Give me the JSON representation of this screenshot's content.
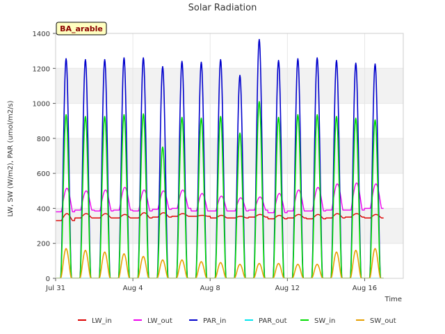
{
  "chart_data": {
    "type": "line",
    "title": "Solar Radiation",
    "xlabel": "Time",
    "ylabel": "LW, SW (W/m2), PAR (umol/m2/s)",
    "site_label": "BA_arable",
    "xlim": [
      0,
      18
    ],
    "ylim": [
      0,
      1400
    ],
    "y_ticks": [
      0,
      200,
      400,
      600,
      800,
      1000,
      1200,
      1400
    ],
    "x_ticks": [
      {
        "value": 0,
        "label": "Jul 31"
      },
      {
        "value": 4,
        "label": "Aug 4"
      },
      {
        "value": 8,
        "label": "Aug 8"
      },
      {
        "value": 12,
        "label": "Aug 12"
      },
      {
        "value": 16,
        "label": "Aug 16"
      }
    ],
    "days": [
      0,
      1,
      2,
      3,
      4,
      5,
      6,
      7,
      8,
      9,
      10,
      11,
      12,
      13,
      14,
      15,
      16
    ],
    "series": [
      {
        "name": "LW_in",
        "color": "#dd0000",
        "kind": "lw",
        "day_values": [
          370,
          370,
          370,
          365,
          375,
          375,
          370,
          360,
          360,
          355,
          365,
          360,
          365,
          365,
          370,
          370,
          365
        ],
        "night_values": [
          330,
          345,
          345,
          345,
          345,
          350,
          355,
          355,
          345,
          345,
          350,
          340,
          345,
          340,
          345,
          350,
          345
        ]
      },
      {
        "name": "LW_out",
        "color": "#ee00ee",
        "kind": "lw",
        "day_values": [
          515,
          500,
          505,
          520,
          505,
          500,
          505,
          485,
          470,
          460,
          465,
          485,
          505,
          520,
          540,
          545,
          540
        ],
        "night_values": [
          380,
          390,
          385,
          390,
          385,
          395,
          400,
          385,
          385,
          385,
          390,
          375,
          385,
          385,
          390,
          390,
          400
        ]
      },
      {
        "name": "PAR_in",
        "color": "#0000cc",
        "kind": "peak",
        "day_values": [
          1255,
          1250,
          1250,
          1260,
          1260,
          1210,
          1240,
          1235,
          1250,
          1160,
          1365,
          1245,
          1255,
          1260,
          1245,
          1230,
          1225
        ]
      },
      {
        "name": "PAR_out",
        "color": "#00e5ee",
        "kind": "zero",
        "day_values": [
          0,
          0,
          0,
          0,
          0,
          0,
          0,
          0,
          0,
          0,
          0,
          0,
          0,
          0,
          0,
          0,
          0
        ]
      },
      {
        "name": "SW_in",
        "color": "#00dd00",
        "kind": "peak",
        "day_values": [
          935,
          925,
          925,
          935,
          940,
          750,
          920,
          915,
          925,
          830,
          1010,
          920,
          935,
          935,
          925,
          915,
          905
        ]
      },
      {
        "name": "SW_out",
        "color": "#e69f00",
        "kind": "peak",
        "day_values": [
          170,
          160,
          150,
          140,
          125,
          105,
          105,
          95,
          90,
          80,
          85,
          85,
          80,
          80,
          150,
          160,
          170
        ]
      }
    ]
  }
}
